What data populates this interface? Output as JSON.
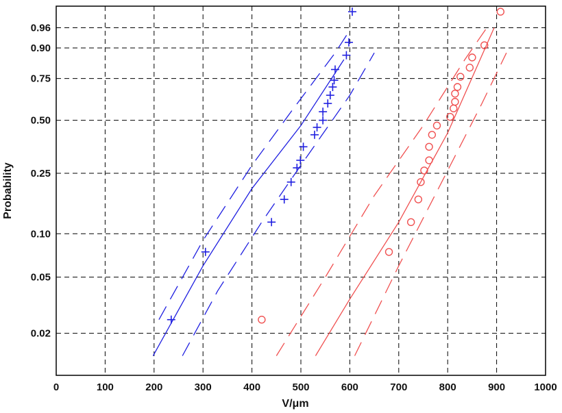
{
  "chart_data": {
    "type": "scatter",
    "xlabel": "V/μm",
    "ylabel": "Probability",
    "xlim": [
      0,
      1000
    ],
    "ylim": [
      0.01,
      0.99
    ],
    "y_scale": "weibull-probability",
    "x_ticks": [
      "0",
      "100",
      "200",
      "300",
      "400",
      "500",
      "600",
      "700",
      "800",
      "900",
      "1000"
    ],
    "x_tick_values": [
      0,
      100,
      200,
      300,
      400,
      500,
      600,
      700,
      800,
      900,
      1000
    ],
    "y_ticks": [
      "0.02",
      "0.05",
      "0.10",
      "0.25",
      "0.50",
      "0.75",
      "0.90",
      "0.96"
    ],
    "y_tick_values": [
      0.02,
      0.05,
      0.1,
      0.25,
      0.5,
      0.75,
      0.9,
      0.96
    ],
    "grid": true,
    "colors": {
      "blue": "#1f1fe0",
      "red": "#f05050"
    },
    "series": [
      {
        "marker": "plus",
        "color": "#1f1fe0",
        "points": [
          [
            235,
            0.025
          ],
          [
            305,
            0.075
          ],
          [
            440,
            0.12
          ],
          [
            466,
            0.17
          ],
          [
            480,
            0.22
          ],
          [
            492,
            0.27
          ],
          [
            499,
            0.3
          ],
          [
            505,
            0.36
          ],
          [
            528,
            0.42
          ],
          [
            533,
            0.46
          ],
          [
            545,
            0.5
          ],
          [
            545,
            0.55
          ],
          [
            555,
            0.6
          ],
          [
            560,
            0.65
          ],
          [
            565,
            0.7
          ],
          [
            568,
            0.74
          ],
          [
            570,
            0.8
          ],
          [
            593,
            0.87
          ],
          [
            598,
            0.92
          ],
          [
            605,
            0.985
          ]
        ],
        "fit": [
          [
            198,
            0.0138
          ],
          [
            300,
            0.06
          ],
          [
            400,
            0.2
          ],
          [
            500,
            0.47
          ],
          [
            588,
            0.85
          ]
        ],
        "lower": [
          [
            258,
            0.0138
          ],
          [
            330,
            0.04
          ],
          [
            420,
            0.12
          ],
          [
            500,
            0.28
          ],
          [
            600,
            0.65
          ],
          [
            650,
            0.88
          ]
        ],
        "upper": [
          [
            210,
            0.025
          ],
          [
            300,
            0.09
          ],
          [
            400,
            0.28
          ],
          [
            480,
            0.55
          ],
          [
            570,
            0.88
          ],
          [
            595,
            0.945
          ]
        ]
      },
      {
        "marker": "circle",
        "color": "#f05050",
        "points": [
          [
            420,
            0.025
          ],
          [
            680,
            0.075
          ],
          [
            725,
            0.12
          ],
          [
            740,
            0.17
          ],
          [
            745,
            0.22
          ],
          [
            752,
            0.26
          ],
          [
            762,
            0.3
          ],
          [
            762,
            0.36
          ],
          [
            768,
            0.42
          ],
          [
            778,
            0.47
          ],
          [
            805,
            0.52
          ],
          [
            812,
            0.57
          ],
          [
            815,
            0.61
          ],
          [
            815,
            0.66
          ],
          [
            820,
            0.7
          ],
          [
            826,
            0.76
          ],
          [
            845,
            0.81
          ],
          [
            850,
            0.86
          ],
          [
            875,
            0.91
          ],
          [
            908,
            0.985
          ]
        ],
        "fit": [
          [
            530,
            0.0138
          ],
          [
            600,
            0.035
          ],
          [
            700,
            0.12
          ],
          [
            800,
            0.43
          ],
          [
            895,
            0.96
          ]
        ],
        "lower": [
          [
            610,
            0.0138
          ],
          [
            700,
            0.06
          ],
          [
            800,
            0.26
          ],
          [
            870,
            0.6
          ],
          [
            920,
            0.88
          ]
        ],
        "upper": [
          [
            450,
            0.0138
          ],
          [
            550,
            0.05
          ],
          [
            650,
            0.18
          ],
          [
            750,
            0.47
          ],
          [
            835,
            0.85
          ],
          [
            880,
            0.96
          ]
        ]
      }
    ]
  }
}
